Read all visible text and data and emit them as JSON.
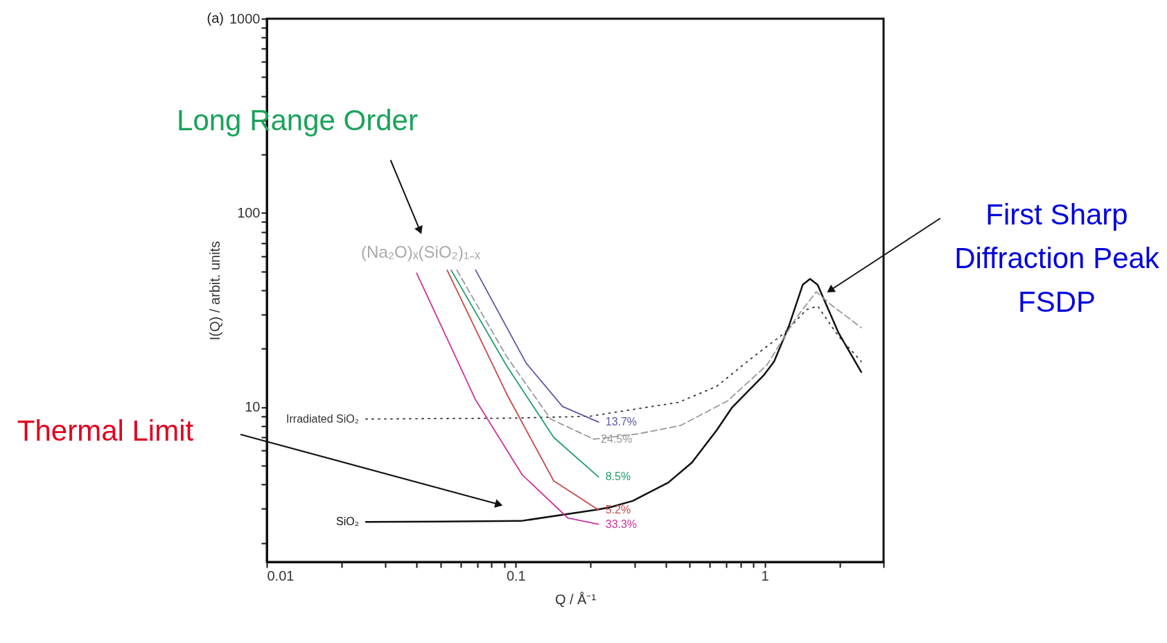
{
  "chart_data": {
    "type": "line",
    "title": "(a)",
    "xlabel": "Q / Å⁻¹",
    "ylabel": "I(Q) / arbit. units",
    "log": "xy",
    "grid": false,
    "xlim": [
      0.01,
      3
    ],
    "xticks": [
      0.01,
      {
        "value": 0.02,
        "label": null
      },
      {
        "value": 0.03,
        "label": null
      },
      {
        "value": 0.04,
        "label": null
      },
      {
        "value": 0.05,
        "label": null
      },
      {
        "value": 0.06,
        "label": null
      },
      {
        "value": 0.07,
        "label": null
      },
      {
        "value": 0.08,
        "label": null
      },
      {
        "value": 0.09,
        "label": null
      },
      0.1,
      {
        "value": 0.2,
        "label": null
      },
      {
        "value": 0.3,
        "label": null
      },
      {
        "value": 0.4,
        "label": null
      },
      {
        "value": 0.5,
        "label": null
      },
      {
        "value": 0.6,
        "label": null
      },
      {
        "value": 0.7,
        "label": null
      },
      {
        "value": 0.8,
        "label": null
      },
      {
        "value": 0.9,
        "label": null
      },
      1,
      {
        "value": 2,
        "label": null
      },
      {
        "value": 3,
        "label": null
      }
    ],
    "ylim": [
      1.6,
      1000
    ],
    "yticks": [
      {
        "value": 2,
        "label": null
      },
      {
        "value": 3,
        "label": null
      },
      {
        "value": 4,
        "label": null
      },
      {
        "value": 5,
        "label": null
      },
      {
        "value": 6,
        "label": null
      },
      {
        "value": 7,
        "label": null
      },
      {
        "value": 8,
        "label": null
      },
      {
        "value": 9,
        "label": null
      },
      10,
      {
        "value": 20,
        "label": null
      },
      {
        "value": 30,
        "label": null
      },
      {
        "value": 40,
        "label": null
      },
      {
        "value": 50,
        "label": null
      },
      {
        "value": 60,
        "label": null
      },
      {
        "value": 70,
        "label": null
      },
      {
        "value": 80,
        "label": null
      },
      {
        "value": 90,
        "label": null
      },
      100,
      {
        "value": 200,
        "label": null
      },
      {
        "value": 300,
        "label": null
      },
      {
        "value": 400,
        "label": null
      },
      {
        "value": 500,
        "label": null
      },
      {
        "value": 600,
        "label": null
      },
      {
        "value": 700,
        "label": null
      },
      {
        "value": 800,
        "label": null
      },
      {
        "value": 900,
        "label": null
      },
      1000
    ],
    "series": [
      {
        "name": "SiO₂",
        "color": "#111111",
        "line_style": "solid",
        "x": [
          0.025,
          0.05,
          0.105,
          0.21,
          0.24,
          0.295,
          0.41,
          0.51,
          0.64,
          0.74,
          0.99,
          1.09,
          1.25,
          1.42,
          1.52,
          1.63,
          1.98,
          2.44
        ],
        "values": [
          2.57,
          2.58,
          2.6,
          2.97,
          3.06,
          3.3,
          4.1,
          5.2,
          7.6,
          10,
          14.6,
          17.2,
          26.2,
          42.7,
          45.8,
          42.7,
          24.1,
          15.2
        ]
      },
      {
        "name": "Irradiated SiO₂",
        "color": "#333333",
        "line_style": "dotted",
        "x": [
          0.025,
          0.1,
          0.2,
          0.24,
          0.45,
          0.64,
          0.89,
          1.2,
          1.47,
          1.63,
          1.98,
          2.44
        ],
        "values": [
          8.7,
          8.8,
          9.0,
          9.35,
          10.6,
          12.8,
          18.0,
          24.1,
          31.8,
          33.2,
          23.2,
          17.2
        ]
      },
      {
        "name": "24.5%",
        "color": "#999999",
        "line_style": "dashed",
        "x": [
          0.058,
          0.092,
          0.138,
          0.206,
          0.31,
          0.46,
          0.71,
          1.02,
          1.33,
          1.61,
          1.84,
          2.44
        ],
        "values": [
          50.8,
          18.2,
          8.7,
          6.85,
          7.3,
          8.07,
          10.8,
          16.5,
          28.6,
          39.3,
          33.8,
          25.7
        ]
      },
      {
        "name": "13.7%",
        "color": "#5a5aa8",
        "line_style": "solid",
        "x": [
          0.069,
          0.11,
          0.154,
          0.215
        ],
        "values": [
          50.8,
          16.9,
          10.1,
          8.4
        ]
      },
      {
        "name": "8.5%",
        "color": "#1f9e6a",
        "line_style": "solid",
        "x": [
          0.055,
          0.092,
          0.142,
          0.215
        ],
        "values": [
          50.8,
          16.3,
          7.0,
          4.38
        ]
      },
      {
        "name": "5.2%",
        "color": "#c84848",
        "line_style": "solid",
        "x": [
          0.053,
          0.092,
          0.142,
          0.215
        ],
        "values": [
          50.8,
          11.7,
          4.18,
          2.96
        ]
      },
      {
        "name": "33.3%",
        "color": "#cc3399",
        "line_style": "solid",
        "x": [
          0.04,
          0.069,
          0.106,
          0.162,
          0.215
        ],
        "values": [
          49,
          10.9,
          4.5,
          2.69,
          2.5
        ]
      }
    ],
    "annotations": [
      "Long Range Order",
      "Thermal Limit",
      "First Sharp\nDiffraction Peak\nFSDP",
      "(Na₂O)ₓ(SiO₂)₁₋ₓ"
    ]
  }
}
